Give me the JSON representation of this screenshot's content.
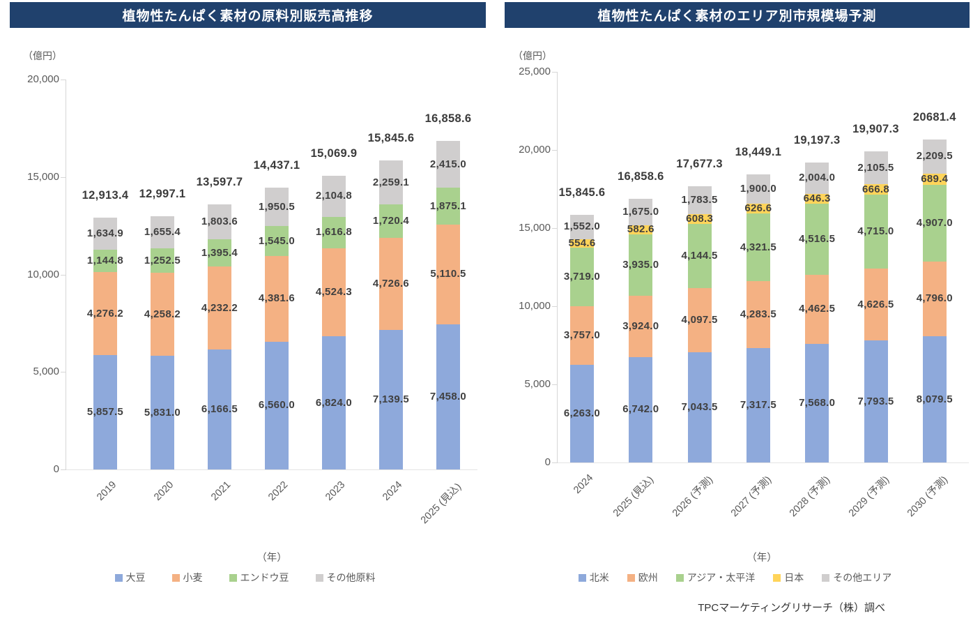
{
  "source_note": "TPCマーケティングリサーチ（株）調べ",
  "charts": [
    {
      "title": "植物性たんぱく素材の原料別販売高推移",
      "unit_label": "（億円）",
      "x_axis_label": "（年）",
      "chart_data": {
        "type": "bar",
        "stacked": true,
        "categories": [
          "2019",
          "2020",
          "2021",
          "2022",
          "2023",
          "2024",
          "2025 (見込)"
        ],
        "series": [
          {
            "name": "大豆",
            "color": "#8EA9DB",
            "values": [
              5857.5,
              5831.0,
              6166.5,
              6560.0,
              6824.0,
              7139.5,
              7458.0
            ]
          },
          {
            "name": "小麦",
            "color": "#F4B183",
            "values": [
              4276.2,
              4258.2,
              4232.2,
              4381.6,
              4524.3,
              4726.6,
              5110.5
            ]
          },
          {
            "name": "エンドウ豆",
            "color": "#A9D18E",
            "values": [
              1144.8,
              1252.5,
              1395.4,
              1545.0,
              1616.8,
              1720.4,
              1875.1
            ]
          },
          {
            "name": "その他原料",
            "color": "#D0CECE",
            "values": [
              1634.9,
              1655.4,
              1803.6,
              1950.5,
              2104.8,
              2259.1,
              2415.0
            ]
          }
        ],
        "totals": [
          "12,913.4",
          "12,997.1",
          "13,597.7",
          "14,437.1",
          "15,069.9",
          "15,845.6",
          "16,858.6"
        ],
        "ylim": [
          0,
          20000
        ],
        "yticks": [
          "0",
          "5,000",
          "10,000",
          "15,000",
          "20,000"
        ],
        "ylabel": "（億円）",
        "xlabel": "（年）",
        "grid": false,
        "legend_position": "bottom"
      }
    },
    {
      "title": "植物性たんぱく素材のエリア別市規模場予測",
      "unit_label": "（億円）",
      "x_axis_label": "（年）",
      "chart_data": {
        "type": "bar",
        "stacked": true,
        "categories": [
          "2024",
          "2025 (見込)",
          "2026 (予測)",
          "2027 (予測)",
          "2028 (予測)",
          "2029 (予測)",
          "2030 (予測)"
        ],
        "series": [
          {
            "name": "北米",
            "color": "#8EA9DB",
            "values": [
              6263.0,
              6742.0,
              7043.5,
              7317.5,
              7568.0,
              7793.5,
              8079.5
            ]
          },
          {
            "name": "欧州",
            "color": "#F4B183",
            "values": [
              3757.0,
              3924.0,
              4097.5,
              4283.5,
              4462.5,
              4626.5,
              4796.0
            ]
          },
          {
            "name": "アジア・太平洋",
            "color": "#A9D18E",
            "values": [
              3719.0,
              3935.0,
              4144.5,
              4321.5,
              4516.5,
              4715.0,
              4907.0
            ]
          },
          {
            "name": "日本",
            "color": "#FFD45A",
            "values": [
              554.6,
              582.6,
              608.3,
              626.6,
              646.3,
              666.8,
              689.4
            ]
          },
          {
            "name": "その他エリア",
            "color": "#D0CECE",
            "values": [
              1552.0,
              1675.0,
              1783.5,
              1900.0,
              2004.0,
              2105.5,
              2209.5
            ]
          }
        ],
        "totals": [
          "15,845.6",
          "16,858.6",
          "17,677.3",
          "18,449.1",
          "19,197.3",
          "19,907.3",
          "20681.4"
        ],
        "ylim": [
          0,
          25000
        ],
        "yticks": [
          "0",
          "5,000",
          "10,000",
          "15,000",
          "20,000",
          "25,000"
        ],
        "ylabel": "（億円）",
        "xlabel": "（年）",
        "grid": false,
        "legend_position": "bottom"
      }
    }
  ]
}
